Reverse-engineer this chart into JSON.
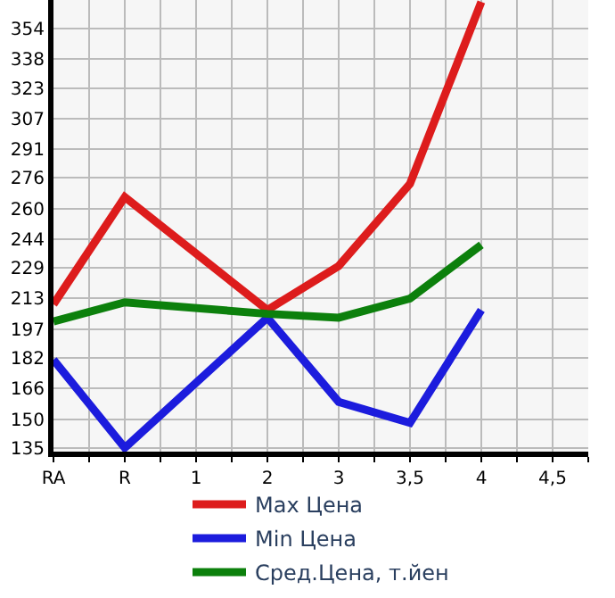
{
  "chart_data": {
    "type": "line",
    "categories": [
      "RA",
      "R",
      "1",
      "2",
      "3",
      "3,5",
      "4",
      "4,5"
    ],
    "series": [
      {
        "name": "Max Цена",
        "color": "#dd1c1c",
        "values": [
          210,
          266,
          null,
          207,
          230,
          273,
          368,
          null
        ]
      },
      {
        "name": "Min Цена",
        "color": "#1c1cdd",
        "values": [
          181,
          135,
          null,
          203,
          159,
          148,
          207,
          null
        ]
      },
      {
        "name": "Сред.Цена, т.йен",
        "color": "#0c800c",
        "values": [
          201,
          211,
          null,
          205,
          203,
          213,
          241,
          null
        ]
      }
    ],
    "ylim": [
      133,
      369
    ],
    "yticks": [
      135,
      150,
      166,
      182,
      197,
      213,
      229,
      244,
      260,
      276,
      291,
      307,
      323,
      338,
      354
    ],
    "grid": true,
    "legend": "bottom",
    "marker": "none",
    "line_style": "solid"
  }
}
